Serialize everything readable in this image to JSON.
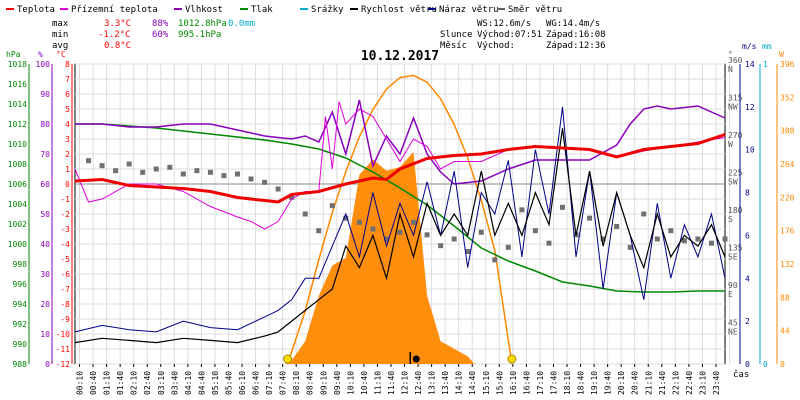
{
  "chart_data": {
    "type": "line",
    "title": "10.12.2017",
    "legend": [
      {
        "label": "Teplota",
        "color": "#ff0000"
      },
      {
        "label": "Přízemní teplota",
        "color": "#dd00dd"
      },
      {
        "label": "Vlhkost",
        "color": "#8800bb"
      },
      {
        "label": "Tlak",
        "color": "#008800"
      },
      {
        "label": "Srážky",
        "color": "#00aacc"
      },
      {
        "label": "Rychlost větru",
        "color": "#000000"
      },
      {
        "label": "Náraz větru",
        "color": "#000088"
      },
      {
        "label": "Směr větru",
        "color": "#666666"
      }
    ],
    "stats": {
      "max": {
        "label": "max",
        "temp": "3.3°C",
        "hum": "88%",
        "pres": "1012.8hPa",
        "rain": "0.0mm"
      },
      "min": {
        "label": "min",
        "temp": "-1.2°C",
        "hum": "60%",
        "pres": "995.1hPa"
      },
      "avg": {
        "label": "avg",
        "temp": "0.8°C"
      }
    },
    "wind_info": {
      "ws": "WS:12.6m/s",
      "wg": "WG:14.4m/s"
    },
    "sun": {
      "label": "Slunce",
      "rise": "Východ:07:51",
      "set": "Západ:16:08"
    },
    "moon": {
      "label": "Měsíc",
      "rise": "Východ:",
      "set": "Západ:12:36"
    },
    "axis_units": {
      "hpa": "hPa",
      "pct": "%",
      "degc": "°C",
      "deg": "°",
      "ms": "m/s",
      "mm": "mm",
      "wm2": "W"
    },
    "xlabel": "čas",
    "x_ticks": [
      "00:10",
      "00:40",
      "01:10",
      "01:40",
      "02:10",
      "02:40",
      "03:10",
      "03:40",
      "04:10",
      "04:40",
      "05:10",
      "05:40",
      "06:10",
      "06:40",
      "07:10",
      "07:40",
      "08:10",
      "08:40",
      "09:10",
      "09:40",
      "10:10",
      "10:40",
      "11:10",
      "11:40",
      "12:10",
      "12:40",
      "13:10",
      "13:40",
      "14:10",
      "14:40",
      "15:10",
      "15:40",
      "16:10",
      "16:40",
      "17:10",
      "17:40",
      "18:10",
      "18:40",
      "19:10",
      "19:40",
      "20:10",
      "20:40",
      "21:10",
      "21:40",
      "22:10",
      "22:40",
      "23:10",
      "23:40"
    ],
    "axes": {
      "temp_c": {
        "min": -12,
        "max": 8,
        "ticks": [
          8,
          7,
          6,
          5,
          4,
          3,
          2,
          1,
          0,
          -1,
          -2,
          -3,
          -4,
          -5,
          -6,
          -7,
          -8,
          -9,
          -10,
          -11,
          -12
        ]
      },
      "humidity_pct": {
        "min": 0,
        "max": 100,
        "ticks": [
          100,
          90,
          80,
          70,
          60,
          50,
          40,
          30,
          20,
          10,
          0
        ]
      },
      "pressure_hpa": {
        "min": 988,
        "max": 1018,
        "ticks": [
          1018,
          1016,
          1014,
          1012,
          1010,
          1008,
          1006,
          1004,
          1002,
          1000,
          998,
          996,
          994,
          992,
          990,
          988
        ]
      },
      "direction_deg": {
        "min": 0,
        "max": 360,
        "ticks": [
          {
            "v": 360,
            "l": "N"
          },
          {
            "v": 315,
            "l": "NW"
          },
          {
            "v": 270,
            "l": "W"
          },
          {
            "v": 225,
            "l": "SW"
          },
          {
            "v": 180,
            "l": "S"
          },
          {
            "v": 135,
            "l": "SE"
          },
          {
            "v": 90,
            "l": "E"
          },
          {
            "v": 45,
            "l": "NE"
          },
          {
            "v": 0,
            "l": ""
          }
        ]
      },
      "wind_ms": {
        "min": 0,
        "max": 14,
        "ticks": [
          14,
          12,
          10,
          8,
          6,
          4,
          2,
          0
        ]
      },
      "rain_mm": {
        "min": 0,
        "max": 1,
        "ticks": [
          1,
          0
        ]
      },
      "solar_wm2": {
        "min": 0,
        "max": 396,
        "ticks": [
          396,
          352,
          308,
          264,
          220,
          176,
          132,
          88,
          44,
          0
        ]
      }
    },
    "series": {
      "temperature_c": {
        "x": [
          0,
          1,
          2,
          3,
          4,
          5,
          6,
          7,
          7.5,
          8,
          9,
          10,
          11,
          11.5,
          12,
          13,
          14,
          15,
          16,
          17,
          18,
          19,
          20,
          21,
          22,
          23,
          24
        ],
        "y": [
          0.2,
          0.3,
          -0.1,
          -0.2,
          -0.3,
          -0.5,
          -0.9,
          -1.1,
          -1.2,
          -0.7,
          -0.5,
          0.0,
          0.4,
          0.3,
          1.0,
          1.7,
          1.9,
          2.0,
          2.3,
          2.5,
          2.4,
          2.3,
          1.8,
          2.3,
          2.5,
          2.7,
          3.3
        ]
      },
      "ground_temperature_c": {
        "x": [
          0,
          0.5,
          1,
          2,
          3,
          4,
          5,
          6,
          6.5,
          7,
          7.5,
          8,
          8.5,
          9,
          9.25,
          9.5,
          9.75,
          10,
          10.5,
          11,
          11.5,
          12,
          12.5,
          13,
          13.5,
          14,
          15,
          16,
          17,
          18,
          19,
          20,
          21,
          22,
          23,
          24
        ],
        "y": [
          1.0,
          -1.2,
          -1.0,
          0.0,
          0.0,
          -0.5,
          -1.5,
          -2.2,
          -2.5,
          -3.0,
          -2.5,
          -1.0,
          -0.5,
          -0.5,
          4.5,
          1.0,
          5.5,
          4.0,
          5.0,
          4.5,
          3.0,
          1.5,
          3.0,
          2.5,
          1.0,
          1.5,
          1.5,
          2.3,
          2.5,
          2.4,
          2.3,
          1.8,
          2.2,
          2.5,
          2.8,
          3.1
        ]
      },
      "humidity_pct": {
        "x": [
          0,
          1,
          2,
          3,
          4,
          5,
          6,
          7,
          8,
          8.5,
          9,
          9.5,
          10,
          10.5,
          11,
          11.5,
          12,
          12.5,
          13,
          13.5,
          14,
          15,
          16,
          17,
          18,
          19,
          20,
          20.5,
          21,
          21.5,
          22,
          23,
          24
        ],
        "y": [
          80,
          80,
          79,
          79,
          80,
          80,
          78,
          76,
          75,
          76,
          74,
          84,
          70,
          88,
          66,
          76,
          70,
          82,
          70,
          64,
          60,
          61,
          65,
          68,
          68,
          68,
          73,
          80,
          85,
          86,
          85,
          86,
          82
        ]
      },
      "pressure_hpa": {
        "x": [
          0,
          1,
          2,
          3,
          4,
          5,
          6,
          7,
          8,
          9,
          10,
          11,
          12,
          13,
          14,
          15,
          16,
          17,
          18,
          19,
          20,
          21,
          22,
          23,
          24
        ],
        "y": [
          1012.0,
          1012.0,
          1011.8,
          1011.6,
          1011.3,
          1011.0,
          1010.7,
          1010.4,
          1010.0,
          1009.5,
          1008.6,
          1007.2,
          1005.6,
          1003.9,
          1001.8,
          999.6,
          998.3,
          997.3,
          996.2,
          995.8,
          995.3,
          995.2,
          995.2,
          995.3,
          995.3
        ]
      },
      "wind_speed_ms": {
        "x": [
          0,
          1,
          2,
          3,
          4,
          5,
          6,
          7,
          7.5,
          8,
          8.5,
          9,
          9.5,
          10,
          10.5,
          11,
          11.5,
          12,
          12.5,
          13,
          13.5,
          14,
          14.5,
          15,
          15.5,
          16,
          16.5,
          17,
          17.5,
          18,
          18.5,
          19,
          19.5,
          20,
          20.5,
          21,
          21.5,
          22,
          22.5,
          23,
          23.5,
          24
        ],
        "y": [
          1.0,
          1.2,
          1.1,
          1.0,
          1.2,
          1.1,
          1.0,
          1.3,
          1.5,
          2.0,
          2.5,
          3.0,
          3.5,
          5.5,
          4.5,
          6.0,
          4.0,
          7.0,
          5.0,
          7.5,
          6.0,
          7.0,
          6.0,
          9.0,
          6.0,
          7.5,
          6.0,
          8.0,
          6.5,
          11.0,
          6.0,
          9.0,
          5.5,
          8.0,
          6.0,
          4.5,
          7.0,
          5.0,
          6.0,
          5.5,
          6.5,
          5.0
        ]
      },
      "wind_gust_ms": {
        "x": [
          0,
          1,
          2,
          3,
          4,
          5,
          6,
          7,
          7.5,
          8,
          8.5,
          9,
          9.5,
          10,
          10.5,
          11,
          11.5,
          12,
          12.5,
          13,
          13.5,
          14,
          14.5,
          15,
          15.5,
          16,
          16.5,
          17,
          17.5,
          18,
          18.5,
          19,
          19.5,
          20,
          20.5,
          21,
          21.5,
          22,
          22.5,
          23,
          23.5,
          24
        ],
        "y": [
          1.5,
          1.8,
          1.6,
          1.5,
          2.0,
          1.7,
          1.6,
          2.2,
          2.5,
          3.0,
          4.0,
          4.0,
          5.5,
          7.0,
          5.0,
          8.0,
          5.5,
          7.5,
          6.0,
          8.5,
          6.0,
          9.0,
          4.5,
          8.0,
          7.0,
          9.5,
          5.0,
          10.0,
          7.0,
          12.0,
          5.0,
          9.0,
          3.5,
          8.0,
          6.0,
          3.0,
          7.5,
          4.0,
          6.5,
          5.0,
          7.0,
          4.0
        ]
      },
      "solar_wm2": {
        "x": [
          7.75,
          8,
          8.5,
          9,
          9.5,
          10,
          10.5,
          11,
          11.5,
          12,
          12.5,
          13,
          13.5,
          14,
          14.5,
          14.75
        ],
        "y": [
          0,
          5,
          30,
          90,
          130,
          140,
          250,
          270,
          255,
          260,
          280,
          90,
          30,
          20,
          10,
          0
        ]
      },
      "solar_theoretical_wm2": {
        "x": [
          7.85,
          8.5,
          9,
          9.5,
          10,
          10.5,
          11,
          11.5,
          12,
          12.5,
          13,
          13.5,
          14,
          14.5,
          15,
          15.5,
          16.13
        ],
        "y": [
          0,
          70,
          138,
          200,
          254,
          300,
          336,
          363,
          378,
          381,
          372,
          350,
          316,
          272,
          216,
          150,
          0
        ]
      },
      "wind_direction_deg": {
        "x": [
          0.5,
          1,
          1.5,
          2,
          2.5,
          3,
          3.5,
          4,
          4.5,
          5,
          5.5,
          6,
          6.5,
          7,
          7.5,
          8,
          8.5,
          9,
          9.5,
          10,
          10.5,
          11,
          11.5,
          12,
          12.5,
          13,
          13.5,
          14,
          14.5,
          15,
          15.5,
          16,
          16.5,
          17,
          17.5,
          18,
          18.5,
          19,
          19.5,
          20,
          20.5,
          21,
          21.5,
          22,
          22.5,
          23,
          23.5,
          24
        ],
        "y": [
          244,
          238,
          232,
          240,
          230,
          234,
          236,
          228,
          232,
          230,
          226,
          228,
          222,
          218,
          210,
          200,
          180,
          160,
          190,
          175,
          170,
          162,
          150,
          158,
          170,
          155,
          142,
          150,
          135,
          158,
          125,
          140,
          185,
          160,
          145,
          188,
          155,
          175,
          150,
          165,
          140,
          180,
          150,
          160,
          148,
          150,
          145,
          150
        ]
      }
    },
    "sun_markers": {
      "x": [
        7.85,
        16.13
      ],
      "labels": [
        "07:51",
        "16:08"
      ]
    },
    "moon_marker": {
      "x": 12.6,
      "label": "12:36"
    }
  }
}
